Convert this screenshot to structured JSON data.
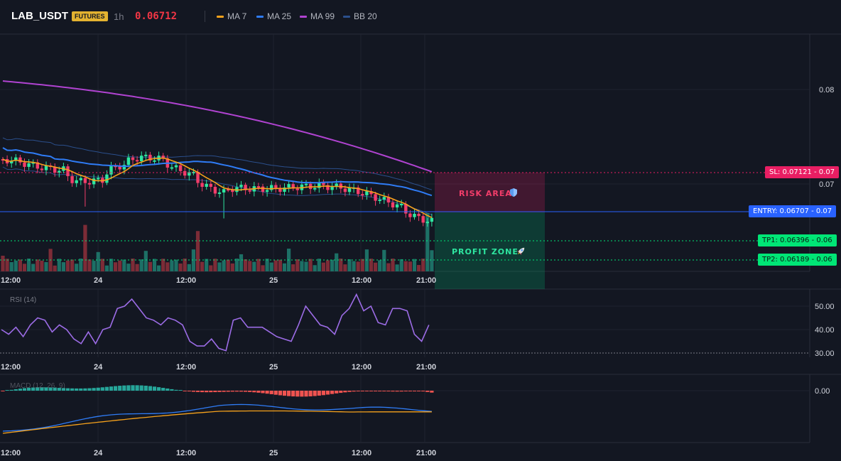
{
  "header": {
    "symbol": "LAB_USDT",
    "badge": "FUTURES",
    "timeframe": "1h",
    "price": "0.06712",
    "legend": [
      {
        "label": "MA 7",
        "color": "#f7a21b"
      },
      {
        "label": "MA 25",
        "color": "#2f7cf6"
      },
      {
        "label": "MA 99",
        "color": "#b043d1"
      },
      {
        "label": "BB 20",
        "color": "#2b4f8c"
      }
    ]
  },
  "main": {
    "price_labels": [
      "0.08",
      "0.07"
    ],
    "time_labels": [
      "12:00",
      "24",
      "12:00",
      "25",
      "12:00",
      "21:00"
    ],
    "risk_area_label": "RISK AREA",
    "profit_zone_label": "PROFIT ZONE",
    "risk_icon": "shield-icon",
    "profit_icon": "rocket-icon",
    "sl_label": "SL: 0.07121 - 0.07",
    "entry_label": "ENTRY: 0.06707 - 0.07",
    "tp1_label": "TP1: 0.06396 - 0.06",
    "tp2_label": "TP2: 0.06189 - 0.06"
  },
  "rsi": {
    "title": "RSI (14)",
    "levels": [
      "50.00",
      "40.00",
      "30.00"
    ],
    "values": [
      40,
      38,
      41,
      37,
      42,
      45,
      44,
      39,
      42,
      40,
      36,
      34,
      39,
      34,
      40,
      41,
      49,
      50,
      53,
      49,
      45,
      44,
      42,
      45,
      44,
      42,
      35,
      33,
      33,
      36,
      32,
      31,
      44,
      45,
      41,
      41,
      41,
      39,
      37,
      36,
      35,
      42,
      50,
      46,
      42,
      41,
      38,
      46,
      49,
      55,
      48,
      50,
      43,
      42,
      49,
      49,
      48,
      38,
      35,
      42
    ],
    "time_labels": [
      "12:00",
      "24",
      "12:00",
      "25",
      "12:00",
      "21:00"
    ]
  },
  "macd": {
    "title": "MACD (12, 26, 9)",
    "level": "0.00",
    "time_labels": [
      "12:00",
      "24",
      "12:00",
      "25",
      "12:00",
      "21:00"
    ]
  },
  "colors": {
    "up": "#26a69a",
    "down": "#ef5350",
    "candle_up": "#2ee6a0",
    "candle_down": "#f23d6a",
    "sl": "#e91e63",
    "entry": "#2962ff",
    "tp": "#00e676"
  }
}
